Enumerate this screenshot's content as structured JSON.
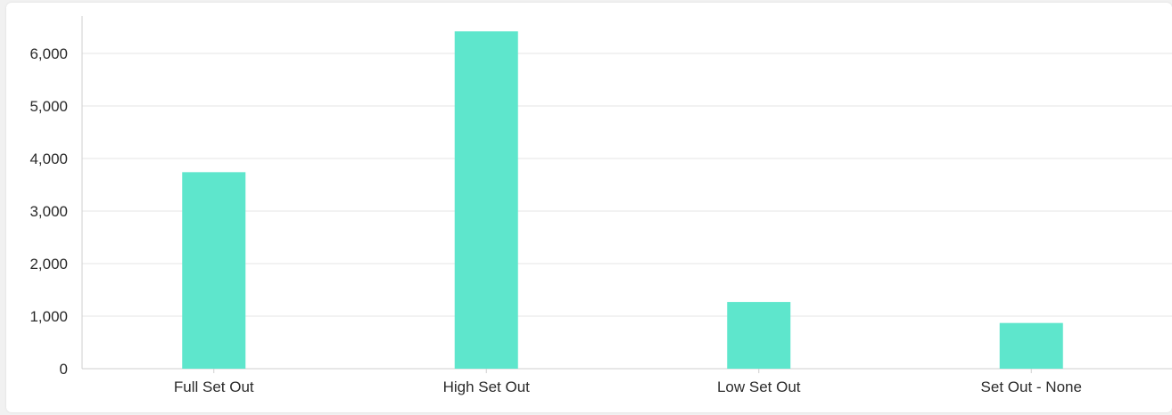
{
  "chart_data": {
    "type": "bar",
    "categories": [
      "Full Set Out",
      "High Set Out",
      "Low Set Out",
      "Set Out - None"
    ],
    "series": [
      {
        "values": [
          3740,
          6420,
          1270,
          870
        ]
      }
    ],
    "title": "",
    "xlabel": "",
    "ylabel": "",
    "ylim": [
      0,
      6000
    ],
    "yticks": [
      0,
      1000,
      2000,
      3000,
      4000,
      5000,
      6000
    ],
    "ytick_labels": [
      "0",
      "1,000",
      "2,000",
      "3,000",
      "4,000",
      "5,000",
      "6,000"
    ],
    "grid": true,
    "legend": "none",
    "colors": {
      "bar": "#5ee6cc",
      "grid": "#e6e6e6",
      "axis": "#cfcfcf",
      "text": "#2b2b2b"
    }
  }
}
